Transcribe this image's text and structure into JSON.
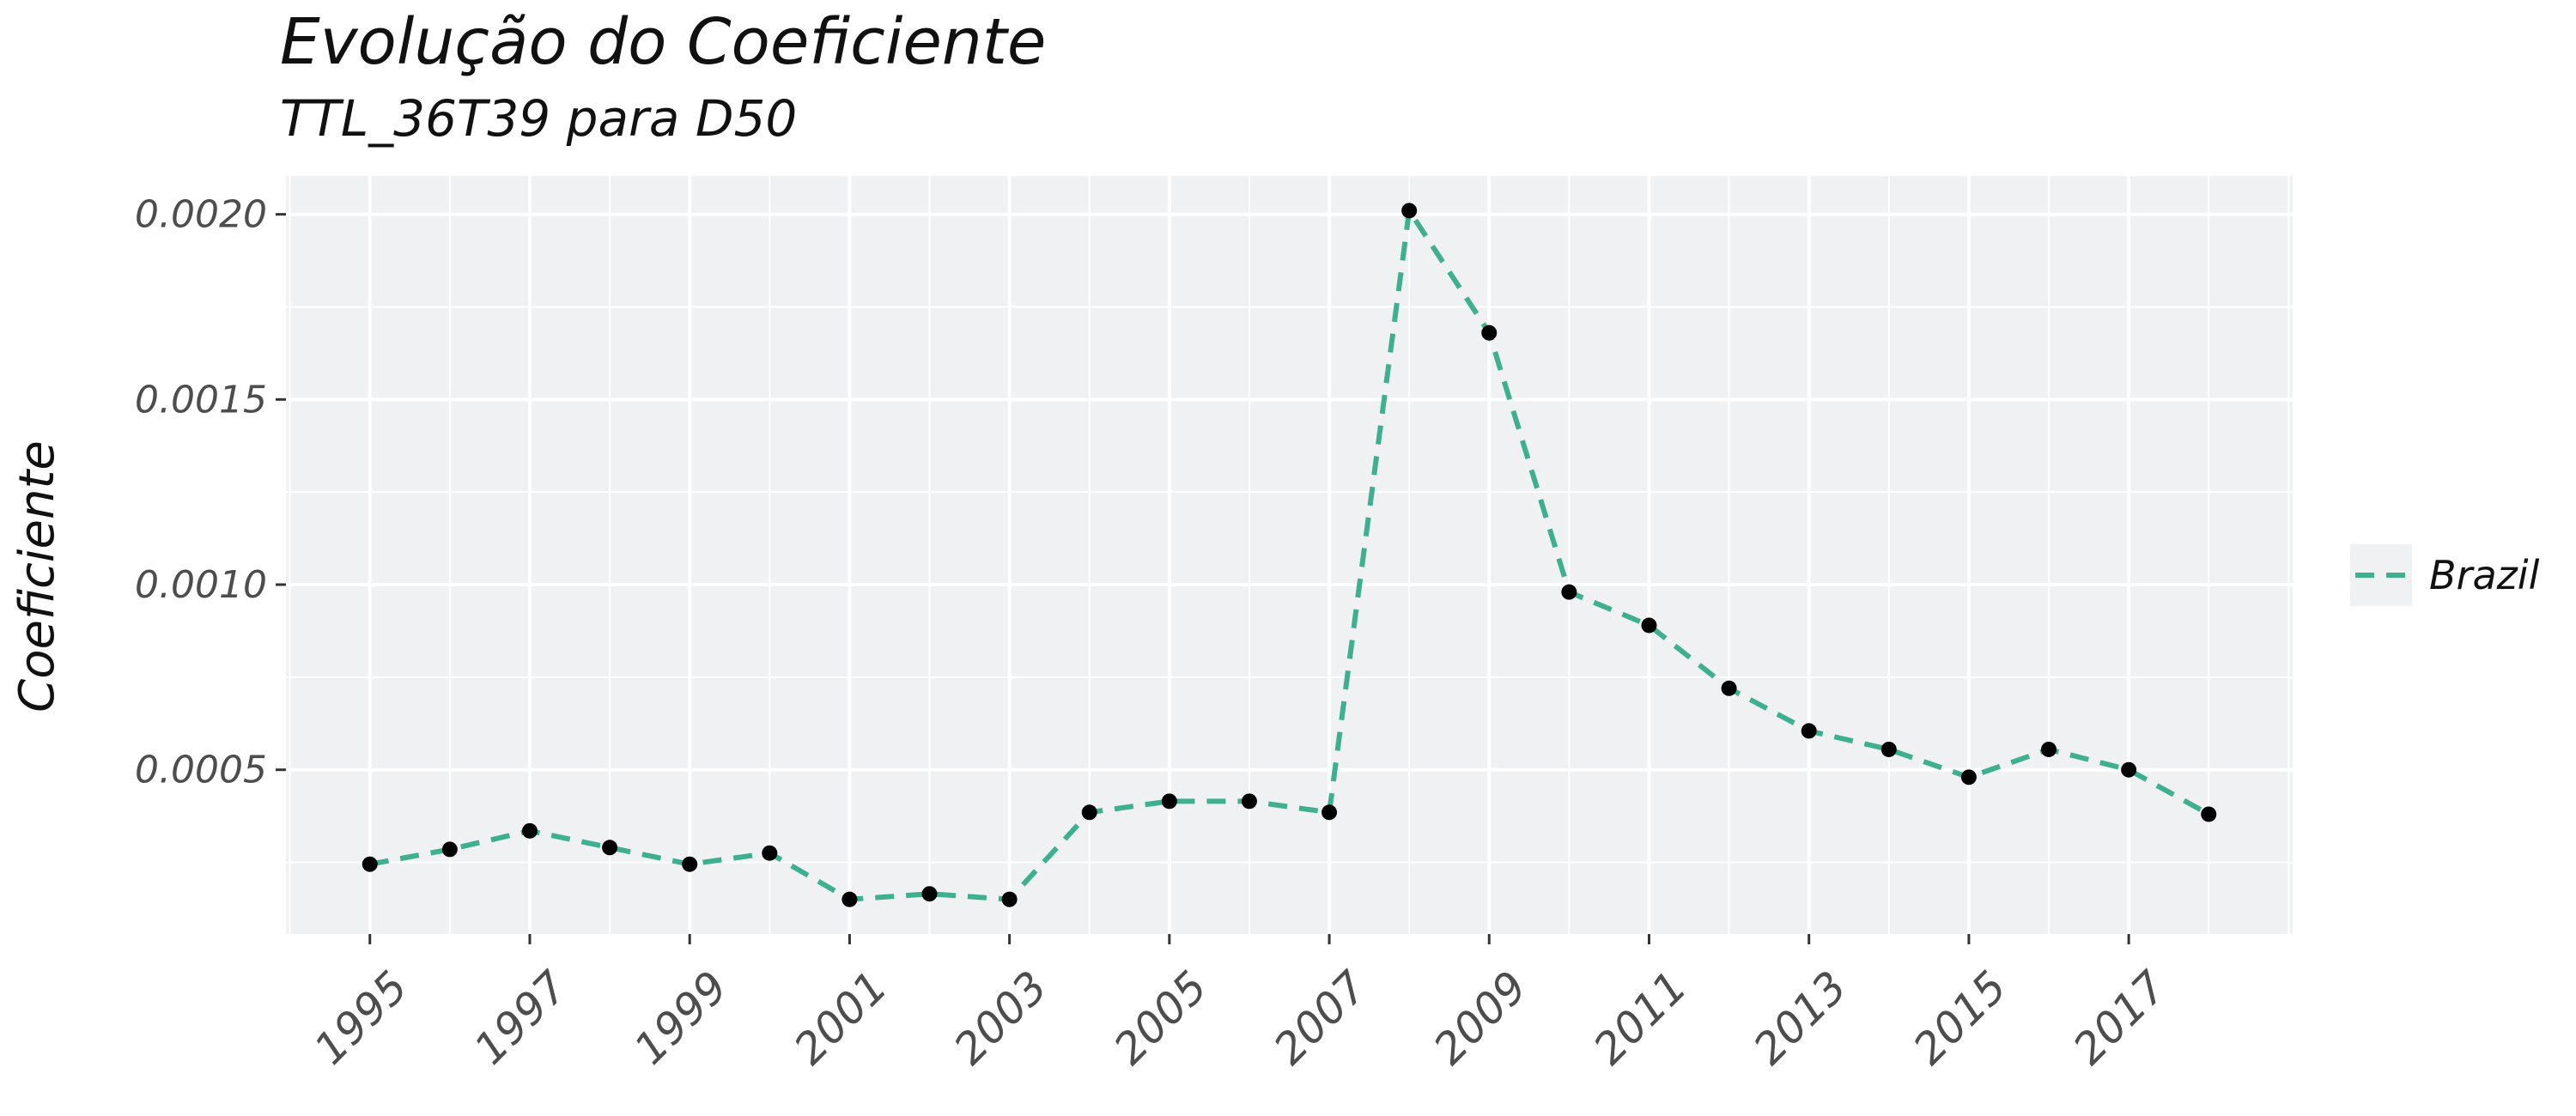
{
  "chart_data": {
    "type": "line",
    "title": "Evolução do Coeficiente",
    "subtitle": "TTL_36T39 para D50",
    "xlabel": "",
    "ylabel": "Coeficiente",
    "x": [
      1995,
      1996,
      1997,
      1998,
      1999,
      2000,
      2001,
      2002,
      2003,
      2004,
      2005,
      2006,
      2007,
      2008,
      2009,
      2010,
      2011,
      2012,
      2013,
      2014,
      2015,
      2016,
      2017,
      2018
    ],
    "series": [
      {
        "name": "Brazil",
        "color": "#3eb08f",
        "values": [
          0.000245,
          0.000285,
          0.000335,
          0.00029,
          0.000245,
          0.000275,
          0.00015,
          0.000165,
          0.00015,
          0.000385,
          0.000415,
          0.000415,
          0.000385,
          0.00201,
          0.00168,
          0.00098,
          0.00089,
          0.00072,
          0.000605,
          0.000555,
          0.00048,
          0.000555,
          0.0005,
          0.00038
        ]
      }
    ],
    "x_tick_labels": [
      "1995",
      "1997",
      "1999",
      "2001",
      "2003",
      "2005",
      "2007",
      "2009",
      "2011",
      "2013",
      "2015",
      "2017"
    ],
    "y_tick_labels": [
      "0.0005",
      "0.0010",
      "0.0015",
      "0.0020"
    ],
    "y_ticks": [
      0.0005,
      0.001,
      0.0015,
      0.002
    ],
    "xlim": [
      1993.95,
      2019.05
    ],
    "ylim": [
      5.65e-05,
      0.0021035
    ],
    "grid": true,
    "legend_position": "right",
    "line_style": "dashed",
    "marker_color": "#000000",
    "panel_background": "#f0f1f3",
    "grid_color": "#ffffff"
  }
}
